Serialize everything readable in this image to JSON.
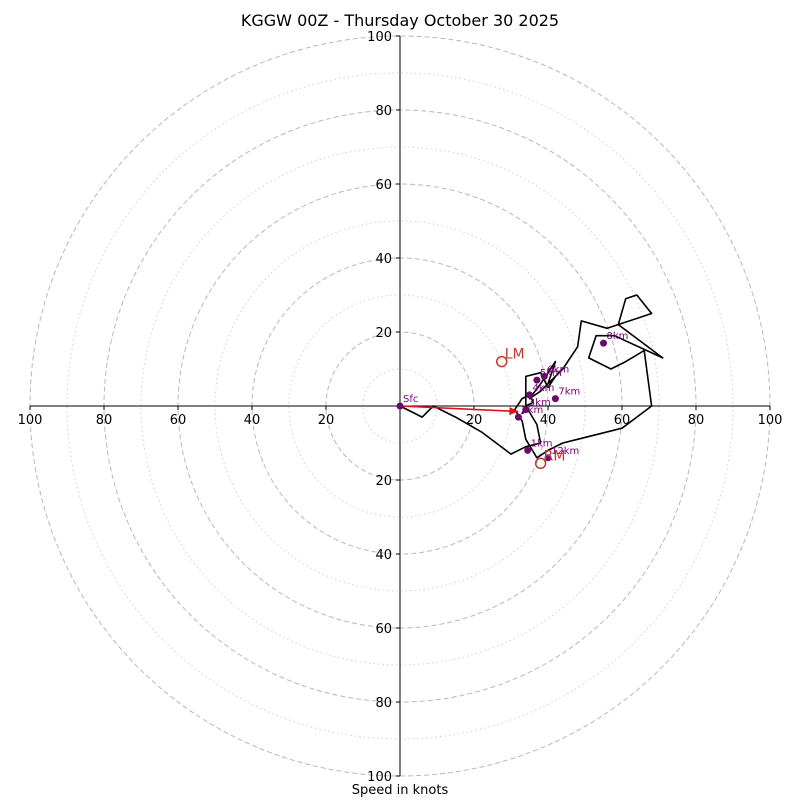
{
  "chart_data": {
    "type": "hodograph",
    "title": "KGGW 00Z - Thursday October 30 2025",
    "xlabel": "Speed in knots",
    "units": "knots",
    "axis_range": [
      -100,
      100
    ],
    "ring_tick_labels": [
      "100",
      "80",
      "60",
      "40",
      "20",
      "20",
      "40",
      "60",
      "80",
      "100"
    ],
    "tick_values": [
      -100,
      -80,
      -60,
      -40,
      -20,
      20,
      40,
      60,
      80,
      100
    ],
    "major_rings": [
      20,
      40,
      60,
      80,
      100
    ],
    "minor_rings": [
      10,
      30,
      50,
      70,
      90
    ],
    "trace_uv": [
      [
        0,
        0
      ],
      [
        6,
        -3
      ],
      [
        9,
        0
      ],
      [
        15,
        -3
      ],
      [
        22,
        -7
      ],
      [
        30,
        -13
      ],
      [
        34,
        -11
      ],
      [
        38,
        -10
      ],
      [
        37,
        -5
      ],
      [
        34,
        0
      ],
      [
        34,
        8
      ],
      [
        38,
        9
      ],
      [
        40,
        5
      ],
      [
        42,
        8
      ],
      [
        38,
        4
      ],
      [
        35,
        2
      ],
      [
        38,
        6
      ],
      [
        40,
        9
      ],
      [
        42,
        12
      ],
      [
        40,
        6
      ],
      [
        44,
        10
      ],
      [
        48,
        16
      ],
      [
        49,
        23
      ],
      [
        56,
        21
      ],
      [
        68,
        25
      ],
      [
        64,
        30
      ],
      [
        61,
        29
      ],
      [
        59,
        22
      ],
      [
        71,
        13
      ],
      [
        58,
        19
      ],
      [
        53,
        19
      ],
      [
        51,
        13
      ],
      [
        57,
        10
      ],
      [
        61,
        12
      ],
      [
        66,
        15
      ],
      [
        68,
        0
      ],
      [
        60,
        -6
      ],
      [
        48,
        -9
      ],
      [
        44,
        -10
      ],
      [
        40,
        -12
      ],
      [
        37,
        -14
      ],
      [
        34,
        -9
      ],
      [
        33,
        -4
      ],
      [
        31,
        -1
      ],
      [
        33,
        2
      ],
      [
        35,
        3
      ],
      [
        36,
        1
      ],
      [
        34,
        0
      ],
      [
        33,
        -2
      ],
      [
        35,
        -1
      ]
    ],
    "height_markers": [
      {
        "label": "Sfc",
        "u": 0,
        "v": 0
      },
      {
        "label": "1km",
        "u": 34.5,
        "v": -12
      },
      {
        "label": "2km",
        "u": 32,
        "v": -3
      },
      {
        "label": "3km",
        "u": 34,
        "v": -1
      },
      {
        "label": "4km",
        "u": 35,
        "v": 3
      },
      {
        "label": "5km",
        "u": 37,
        "v": 7
      },
      {
        "label": "6km",
        "u": 39,
        "v": 8
      },
      {
        "label": "7km",
        "u": 42,
        "v": 2
      },
      {
        "label": "8km",
        "u": 55,
        "v": 17
      },
      {
        "label": "12km",
        "u": 40,
        "v": -14
      }
    ],
    "motion_markers": [
      {
        "label": "LM",
        "u": 27.5,
        "v": 12
      },
      {
        "label": "RM",
        "u": 38,
        "v": -15.5
      }
    ],
    "arrow": {
      "from": [
        0,
        0
      ],
      "to": [
        32,
        -1.5
      ]
    },
    "colors": {
      "trace": "#000000",
      "height_marker": "#6b0a6b",
      "height_label": "#7a007a",
      "motion": "#c0392b",
      "arrow": "#e0101a",
      "major_grid": "#b8b8b8",
      "minor_grid": "#cfcfcf",
      "axis": "#000000"
    }
  }
}
